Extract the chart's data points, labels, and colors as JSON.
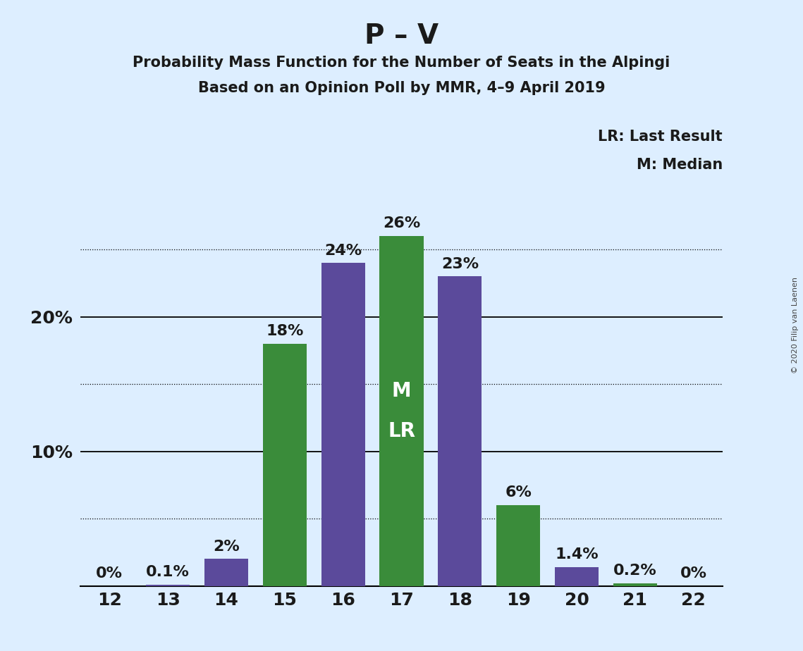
{
  "title": "P – V",
  "subtitle1": "Probability Mass Function for the Number of Seats in the Alpingi",
  "subtitle2": "Based on an Opinion Poll by MMR, 4–9 April 2019",
  "copyright": "© 2020 Filip van Laenen",
  "seats": [
    12,
    13,
    14,
    15,
    16,
    17,
    18,
    19,
    20,
    21,
    22
  ],
  "values": [
    0.0,
    0.1,
    2.0,
    18.0,
    24.0,
    26.0,
    23.0,
    6.0,
    1.4,
    0.2,
    0.0
  ],
  "labels": [
    "0%",
    "0.1%",
    "2%",
    "18%",
    "24%",
    "26%",
    "23%",
    "6%",
    "1.4%",
    "0.2%",
    "0%"
  ],
  "colors": [
    "#5b4a9b",
    "#5b4a9b",
    "#5b4a9b",
    "#3a8c3a",
    "#5b4a9b",
    "#3a8c3a",
    "#5b4a9b",
    "#3a8c3a",
    "#5b4a9b",
    "#3a8c3a",
    "#3a8c3a"
  ],
  "median_seat": 17,
  "median_label": "M",
  "lr_label": "LR",
  "background_color": "#ddeeff",
  "legend_lr": "LR: Last Result",
  "legend_m": "M: Median",
  "ylim": [
    0,
    30
  ],
  "grid_major": [
    10,
    20
  ],
  "grid_minor": [
    5,
    15,
    25
  ],
  "title_fontsize": 28,
  "subtitle_fontsize": 15,
  "bar_label_fontsize": 16,
  "axis_tick_fontsize": 18,
  "ytick_label_fontsize": 18,
  "inner_label_fontsize": 20,
  "legend_fontsize": 15,
  "copyright_fontsize": 8
}
